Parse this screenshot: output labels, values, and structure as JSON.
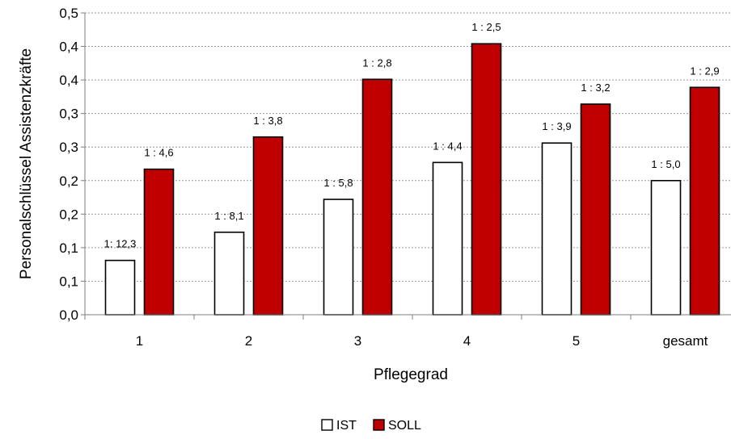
{
  "chart_data": {
    "type": "bar",
    "xlabel": "Pflegegrad",
    "ylabel": "Personalschlüssel Assistenzkräfte",
    "categories": [
      "1",
      "2",
      "3",
      "4",
      "5",
      "gesamt"
    ],
    "yticks": [
      "0,0",
      "0,1",
      "0,1",
      "0,2",
      "0,2",
      "0,3",
      "0,3",
      "0,4",
      "0,4",
      "0,5"
    ],
    "ylim": [
      0,
      0.45
    ],
    "grid": "horizontal dotted",
    "legend_position": "bottom",
    "series": [
      {
        "name": "IST",
        "color": "#ffffff",
        "values": [
          0.081,
          0.123,
          0.172,
          0.227,
          0.256,
          0.2
        ],
        "labels": [
          "1: 12,3",
          "1 : 8,1",
          "1 : 5,8",
          "1 : 4,4",
          "1 : 3,9",
          "1 : 5,0"
        ]
      },
      {
        "name": "SOLL",
        "color": "#c00000",
        "values": [
          0.217,
          0.265,
          0.351,
          0.404,
          0.314,
          0.339
        ],
        "labels": [
          "1 : 4,6",
          "1 : 3,8",
          "1 : 2,8",
          "1 : 2,5",
          "1 : 3,2",
          "1 : 2,9"
        ]
      }
    ]
  }
}
